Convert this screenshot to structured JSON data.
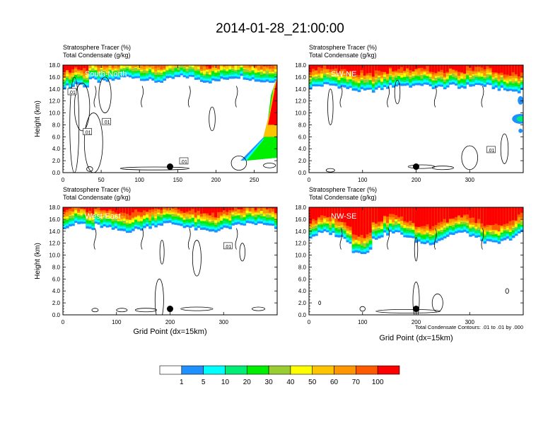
{
  "title": "2014-01-28_21:00:00",
  "footnote": "Total Condensate Contours: .01 to .01 by .000",
  "colorbar": {
    "labels": [
      "1",
      "5",
      "10",
      "20",
      "30",
      "40",
      "50",
      "60",
      "70",
      "100"
    ],
    "colors": [
      "#ffffff",
      "#1e90ff",
      "#00ffff",
      "#00ee76",
      "#00ee00",
      "#9acd32",
      "#ffff00",
      "#ffc400",
      "#ff9600",
      "#ff5a00",
      "#ff0000"
    ]
  },
  "chart_data": [
    {
      "type": "heatmap",
      "field_label": "Stratosphere Tracer   (%)",
      "contour_label": "Total Condensate   (g/kg)",
      "panel_label": "South-North",
      "ylabel": "Height (km)",
      "xlabel": "",
      "xlim": [
        0,
        280
      ],
      "ylim": [
        0,
        18
      ],
      "xticks": [
        "0",
        "50",
        "100",
        "150",
        "200",
        "250"
      ],
      "xtick_values": [
        0,
        50,
        100,
        150,
        200,
        250
      ],
      "yticks": [
        "0.0",
        "2.0",
        "4.0",
        "6.0",
        "8.0",
        "10.0",
        "12.0",
        "14.0",
        "16.0",
        "18.0"
      ],
      "marker_x": 140,
      "marker_y": 1,
      "contour_labels": [
        ".01",
        ".01",
        ".01",
        ".01"
      ]
    },
    {
      "type": "heatmap",
      "field_label": "Stratosphere Tracer   (%)",
      "contour_label": "Total Condensate   (g/kg)",
      "panel_label": "SW-NE",
      "ylabel": "",
      "xlabel": "",
      "xlim": [
        0,
        400
      ],
      "ylim": [
        0,
        18
      ],
      "xticks": [
        "0",
        "100",
        "200",
        "300"
      ],
      "xtick_values": [
        0,
        100,
        200,
        300
      ],
      "yticks": [
        "0.0",
        "2.0",
        "4.0",
        "6.0",
        "8.0",
        "10.0",
        "12.0",
        "14.0",
        "16.0",
        "18.0"
      ],
      "marker_x": 200,
      "marker_y": 1,
      "contour_labels": [
        ".01"
      ]
    },
    {
      "type": "heatmap",
      "field_label": "Stratosphere Tracer   (%)",
      "contour_label": "Total Condensate   (g/kg)",
      "panel_label": "West-East",
      "ylabel": "Height (km)",
      "xlabel": "Grid Point (dx=15km)",
      "xlim": [
        0,
        400
      ],
      "ylim": [
        0,
        18
      ],
      "xticks": [
        "0",
        "100",
        "200",
        "300"
      ],
      "xtick_values": [
        0,
        100,
        200,
        300
      ],
      "yticks": [
        "0.0",
        "2.0",
        "4.0",
        "6.0",
        "8.0",
        "10.0",
        "12.0",
        "14.0",
        "16.0",
        "18.0"
      ],
      "marker_x": 200,
      "marker_y": 1,
      "contour_labels": [
        ".01"
      ]
    },
    {
      "type": "heatmap",
      "field_label": "Stratosphere Tracer   (%)",
      "contour_label": "Total Condensate   (g/kg)",
      "panel_label": "NW-SE",
      "ylabel": "",
      "xlabel": "Grid Point (dx=15km)",
      "xlim": [
        0,
        400
      ],
      "ylim": [
        0,
        18
      ],
      "xticks": [
        "0",
        "100",
        "200",
        "300"
      ],
      "xtick_values": [
        0,
        100,
        200,
        300
      ],
      "yticks": [
        "0.0",
        "2.0",
        "4.0",
        "6.0",
        "8.0",
        "10.0",
        "12.0",
        "14.0",
        "16.0",
        "18.0"
      ],
      "marker_x": 200,
      "marker_y": 1,
      "contour_labels": []
    }
  ]
}
